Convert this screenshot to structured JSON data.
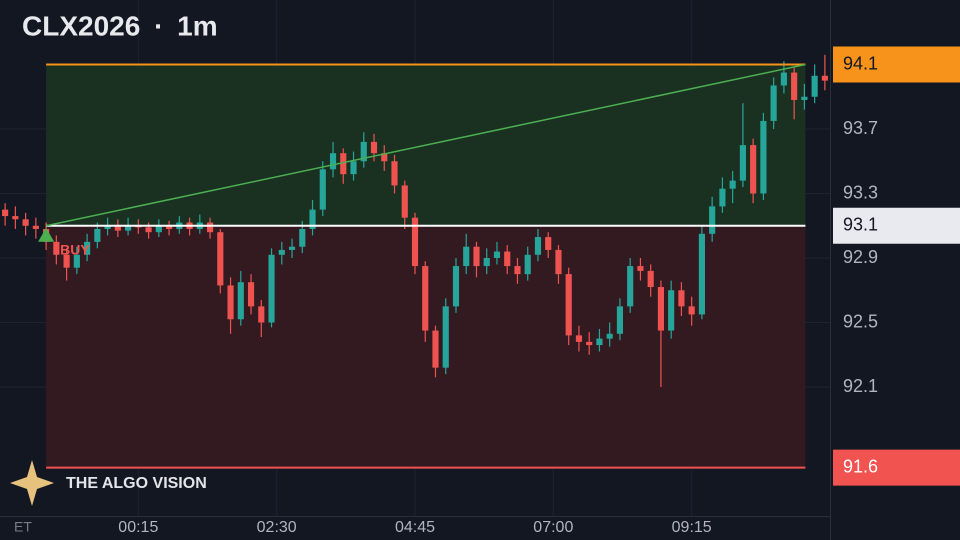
{
  "chart_data": {
    "type": "candlestick",
    "title": "CLX2026 · 1m",
    "timezone": "ET",
    "watermark": "THE ALGO VISION",
    "up_color": "#26a69a",
    "down_color": "#ef5350",
    "grid": true,
    "x": [
      "22:00",
      "22:10",
      "22:20",
      "22:30",
      "22:40",
      "22:50",
      "23:00",
      "23:10",
      "23:20",
      "23:30",
      "23:40",
      "23:50",
      "00:00",
      "00:10",
      "00:20",
      "00:30",
      "00:40",
      "00:50",
      "01:00",
      "01:10",
      "01:20",
      "01:30",
      "01:40",
      "01:50",
      "02:00",
      "02:10",
      "02:20",
      "02:30",
      "02:40",
      "02:50",
      "03:00",
      "03:10",
      "03:20",
      "03:30",
      "03:40",
      "03:50",
      "04:00",
      "04:10",
      "04:20",
      "04:30",
      "04:40",
      "04:50",
      "05:00",
      "05:10",
      "05:20",
      "05:30",
      "05:40",
      "05:50",
      "06:00",
      "06:10",
      "06:20",
      "06:30",
      "06:40",
      "06:50",
      "07:00",
      "07:10",
      "07:20",
      "07:30",
      "07:40",
      "07:50",
      "08:00",
      "08:10",
      "08:20",
      "08:30",
      "08:40",
      "08:50",
      "09:00",
      "09:10",
      "09:20",
      "09:30",
      "09:40",
      "09:50",
      "10:00",
      "10:10",
      "10:20",
      "10:30",
      "10:40",
      "10:50",
      "11:00",
      "11:10",
      "11:20"
    ],
    "open": [
      93.2,
      93.16,
      93.14,
      93.1,
      93.08,
      93.0,
      92.92,
      92.84,
      92.92,
      93.0,
      93.08,
      93.1,
      93.07,
      93.1,
      93.09,
      93.06,
      93.1,
      93.08,
      93.12,
      93.08,
      93.12,
      93.06,
      92.73,
      92.52,
      92.75,
      92.6,
      92.5,
      92.92,
      92.95,
      92.97,
      93.08,
      93.2,
      93.45,
      93.55,
      93.42,
      93.5,
      93.62,
      93.55,
      93.5,
      93.35,
      93.15,
      92.85,
      92.45,
      92.22,
      92.6,
      92.85,
      92.97,
      92.85,
      92.9,
      92.94,
      92.85,
      92.8,
      92.92,
      93.03,
      92.95,
      92.8,
      92.42,
      92.38,
      92.36,
      92.4,
      92.43,
      92.6,
      92.85,
      92.82,
      92.72,
      92.45,
      92.7,
      92.6,
      92.55,
      93.05,
      93.22,
      93.33,
      93.38,
      93.6,
      93.3,
      93.75,
      93.97,
      94.05,
      93.88,
      93.9,
      94.03
    ],
    "high": [
      93.24,
      93.22,
      93.18,
      93.15,
      93.12,
      93.04,
      92.96,
      92.97,
      93.05,
      93.12,
      93.15,
      93.14,
      93.15,
      93.14,
      93.12,
      93.14,
      93.13,
      93.16,
      93.15,
      93.17,
      93.15,
      93.08,
      92.78,
      92.82,
      92.8,
      92.64,
      92.96,
      93.0,
      93.02,
      93.13,
      93.26,
      93.5,
      93.62,
      93.58,
      93.56,
      93.68,
      93.67,
      93.6,
      93.54,
      93.38,
      93.18,
      92.88,
      92.48,
      92.65,
      92.9,
      93.05,
      93.0,
      92.96,
      93.0,
      92.98,
      92.9,
      92.97,
      93.08,
      93.06,
      92.98,
      92.84,
      92.48,
      92.44,
      92.46,
      92.5,
      92.65,
      92.9,
      92.9,
      92.86,
      92.76,
      92.76,
      92.75,
      92.66,
      93.1,
      93.28,
      93.4,
      93.44,
      93.86,
      93.64,
      93.8,
      94.02,
      94.12,
      94.08,
      93.98,
      94.1,
      94.16
    ],
    "low": [
      93.1,
      93.08,
      93.04,
      93.02,
      92.95,
      92.86,
      92.76,
      92.8,
      92.88,
      92.96,
      93.04,
      93.03,
      93.04,
      93.05,
      93.02,
      93.03,
      93.04,
      93.05,
      93.04,
      93.05,
      93.02,
      92.68,
      92.43,
      92.48,
      92.55,
      92.41,
      92.47,
      92.86,
      92.9,
      92.93,
      93.04,
      93.16,
      93.4,
      93.36,
      93.38,
      93.46,
      93.5,
      93.44,
      93.3,
      93.08,
      92.8,
      92.38,
      92.16,
      92.18,
      92.56,
      92.8,
      92.78,
      92.8,
      92.86,
      92.8,
      92.74,
      92.76,
      92.88,
      92.9,
      92.74,
      92.36,
      92.32,
      92.3,
      92.32,
      92.35,
      92.39,
      92.56,
      92.76,
      92.66,
      92.1,
      92.4,
      92.54,
      92.48,
      92.52,
      93.0,
      93.18,
      93.24,
      93.34,
      93.24,
      93.26,
      93.7,
      93.92,
      93.76,
      93.82,
      93.86,
      93.94
    ],
    "close": [
      93.16,
      93.14,
      93.1,
      93.08,
      93.0,
      92.92,
      92.84,
      92.92,
      93.0,
      93.08,
      93.1,
      93.07,
      93.1,
      93.09,
      93.06,
      93.1,
      93.08,
      93.12,
      93.08,
      93.12,
      93.06,
      92.73,
      92.52,
      92.75,
      92.6,
      92.5,
      92.92,
      92.95,
      92.97,
      93.08,
      93.2,
      93.45,
      93.55,
      93.42,
      93.5,
      93.62,
      93.55,
      93.5,
      93.35,
      93.15,
      92.85,
      92.45,
      92.22,
      92.6,
      92.85,
      92.97,
      92.85,
      92.9,
      92.94,
      92.85,
      92.8,
      92.92,
      93.03,
      92.95,
      92.8,
      92.42,
      92.38,
      92.36,
      92.4,
      92.43,
      92.6,
      92.85,
      92.82,
      92.72,
      92.45,
      92.7,
      92.6,
      92.55,
      93.05,
      93.22,
      93.33,
      93.38,
      93.6,
      93.3,
      93.75,
      93.97,
      94.05,
      93.88,
      93.9,
      94.03,
      94.0
    ],
    "xlim": [
      "22:00",
      "11:30"
    ],
    "xticks": [
      "00:15",
      "02:30",
      "04:45",
      "07:00",
      "09:15"
    ],
    "ylim": [
      91.3,
      94.5
    ],
    "yticks": [
      92.1,
      92.5,
      92.9,
      93.3,
      93.7
    ],
    "position": {
      "label": "BUY",
      "start": "22:45",
      "end": "11:06",
      "entry": 93.1,
      "target": 94.1,
      "stop": 91.6,
      "entry_color": "#ffffff",
      "target_color": "#f7931a",
      "stop_color": "#f05350"
    }
  }
}
